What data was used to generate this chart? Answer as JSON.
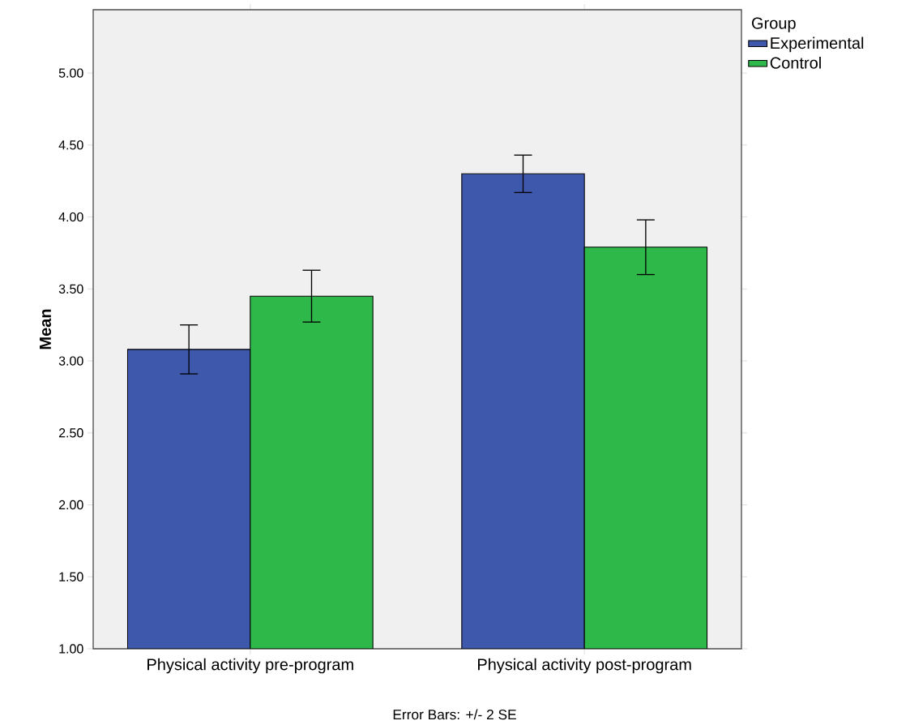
{
  "chart_data": {
    "type": "bar",
    "ylabel": "Mean",
    "legend_title": "Group",
    "legend": "top right",
    "grid": false,
    "categories": [
      "Physical activity pre-program",
      "Physical activity post-program"
    ],
    "series": [
      {
        "name": "Experimental",
        "color": "#3e58ac",
        "values": [
          3.08,
          4.3
        ],
        "errors": [
          0.17,
          0.13
        ]
      },
      {
        "name": "Control",
        "color": "#2fb84a",
        "values": [
          3.45,
          3.79
        ],
        "errors": [
          0.18,
          0.19
        ]
      }
    ],
    "ylim": [
      1.0,
      5.44
    ],
    "yticks": [
      {
        "value": 1.0,
        "label": "1.00"
      },
      {
        "value": 1.5,
        "label": "1.50"
      },
      {
        "value": 2.0,
        "label": "2.00"
      },
      {
        "value": 2.5,
        "label": "2.50"
      },
      {
        "value": 3.0,
        "label": "3.00"
      },
      {
        "value": 3.5,
        "label": "3.50"
      },
      {
        "value": 4.0,
        "label": "4.00"
      },
      {
        "value": 4.5,
        "label": "4.50"
      },
      {
        "value": 5.0,
        "label": "5.00"
      }
    ],
    "annotations": [
      "Error Bars: +/- 2 SE"
    ]
  }
}
